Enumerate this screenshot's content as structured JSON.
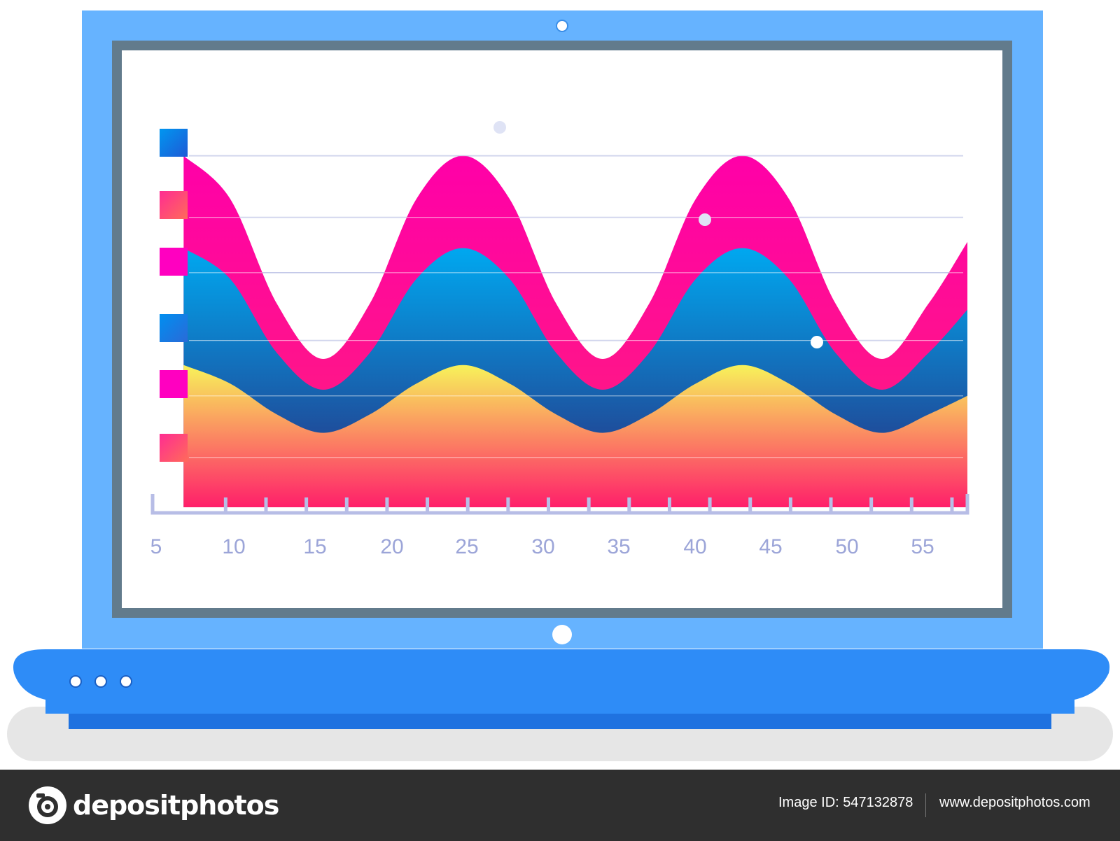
{
  "chart_data": {
    "type": "area",
    "title": "",
    "xlabel": "",
    "ylabel": "",
    "x_ticks": [
      "5",
      "10",
      "15",
      "20",
      "25",
      "30",
      "35",
      "40",
      "45",
      "50",
      "55"
    ],
    "xlim": [
      5,
      57.5
    ],
    "ylim": [
      0,
      6
    ],
    "grid": true,
    "legend": "left",
    "series": [
      {
        "x": [
          7,
          10,
          13,
          16,
          19,
          22,
          25,
          28,
          31,
          34,
          37,
          40,
          43,
          46,
          49,
          52,
          55,
          57.5
        ],
        "values": [
          5.8,
          5.1,
          3.4,
          2.5,
          3.4,
          5.1,
          5.8,
          5.1,
          3.4,
          2.5,
          3.4,
          5.1,
          5.8,
          5.1,
          3.4,
          2.5,
          3.4,
          4.4
        ],
        "color_top": "#ff00a8",
        "color_bottom": "#ff1f7a"
      },
      {
        "x": [
          7,
          10,
          13,
          16,
          19,
          22,
          25,
          28,
          31,
          34,
          37,
          40,
          43,
          46,
          49,
          52,
          55,
          57.5
        ],
        "values": [
          4.3,
          3.8,
          2.6,
          2.0,
          2.6,
          3.8,
          4.3,
          3.8,
          2.6,
          2.0,
          2.6,
          3.8,
          4.3,
          3.8,
          2.6,
          2.0,
          2.6,
          3.3
        ],
        "color_top": "#00a8f0",
        "color_bottom": "#2a2a7a"
      },
      {
        "x": [
          7,
          10,
          13,
          16,
          19,
          22,
          25,
          28,
          31,
          34,
          37,
          40,
          43,
          46,
          49,
          52,
          55,
          57.5
        ],
        "values": [
          2.4,
          2.1,
          1.6,
          1.3,
          1.6,
          2.1,
          2.4,
          2.1,
          1.6,
          1.3,
          1.6,
          2.1,
          2.4,
          2.1,
          1.6,
          1.3,
          1.6,
          1.9
        ],
        "color_top": "#f7f25a",
        "color_bottom": "#ff1f6a"
      }
    ],
    "legend_swatches": [
      {
        "top": "#0096f0",
        "bottom": "#1e5ad6"
      },
      {
        "top": "#ff2c92",
        "bottom": "#ff6a5a"
      },
      {
        "top": "#ff00c0",
        "bottom": "#ff00c0"
      },
      {
        "top": "#008ff0",
        "bottom": "#2a6ad8"
      },
      {
        "top": "#ff00c0",
        "bottom": "#ff00c0"
      },
      {
        "top": "#ff2c92",
        "bottom": "#ff6a5a"
      }
    ]
  },
  "colors": {
    "laptop_frame": "#66b3ff",
    "screen_bezel": "#627b8c",
    "laptop_base": "#2e8cf7",
    "laptop_base_front": "#1f72e0",
    "shadow": "#e6e6e6",
    "grid_line": "#9aa2d8",
    "axis": "#b7bde6",
    "footer": "#2f2f2f"
  },
  "icons": [
    "camera-icon",
    "webcam-icon",
    "power-button-icon",
    "indicator-lights-icon"
  ],
  "footer": {
    "brand": "depositphotos",
    "image_id": "Image ID: 547132878",
    "url": "www.depositphotos.com"
  }
}
